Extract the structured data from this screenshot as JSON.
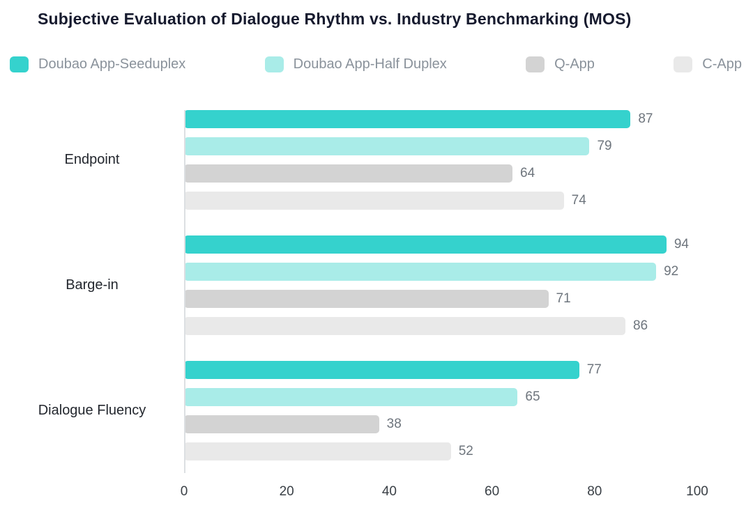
{
  "title": "Subjective Evaluation of Dialogue Rhythm vs. Industry Benchmarking (MOS)",
  "chart_data": {
    "type": "bar",
    "orientation": "horizontal",
    "title": "Subjective Evaluation of Dialogue Rhythm vs. Industry Benchmarking (MOS)",
    "categories": [
      "Endpoint",
      "Barge-in",
      "Dialogue Fluency"
    ],
    "series": [
      {
        "name": "Doubao App-Seeduplex",
        "color": "#35d2cd",
        "values": [
          87,
          94,
          77
        ]
      },
      {
        "name": "Doubao App-Half Duplex",
        "color": "#a9ece8",
        "values": [
          79,
          92,
          65
        ]
      },
      {
        "name": "Q-App",
        "color": "#d3d3d3",
        "values": [
          64,
          71,
          38
        ]
      },
      {
        "name": "C-App",
        "color": "#e9e9e9",
        "values": [
          74,
          86,
          52
        ]
      }
    ],
    "xlim": [
      0,
      100
    ],
    "x_ticks": [
      0,
      20,
      40,
      60,
      80,
      100
    ],
    "value_labels": true,
    "legend_position": "top",
    "grid": false,
    "colors": {
      "title_text": "#161a2e",
      "legend_text": "#8a929b",
      "category_text": "#23272e",
      "value_text": "#6e757d",
      "tick_text": "#3a4046",
      "axis_line": "#dcdfe2"
    }
  }
}
